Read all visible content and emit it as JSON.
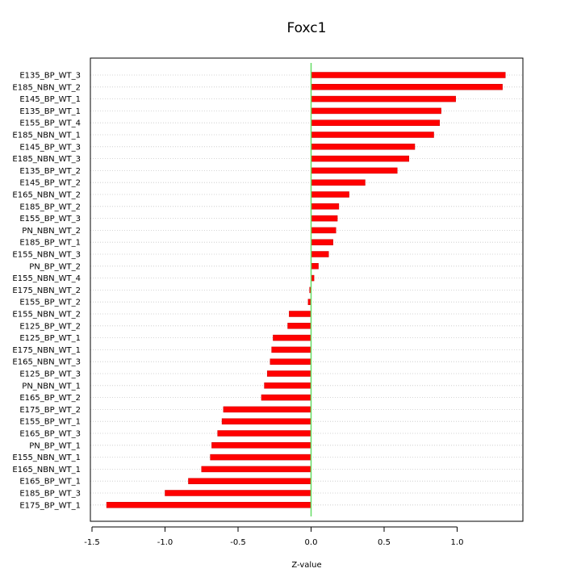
{
  "chart_data": {
    "type": "bar",
    "orientation": "horizontal",
    "title": "Foxc1",
    "xlabel": "Z-value",
    "ylabel": "",
    "xlim": [
      -1.5,
      1.45
    ],
    "xticks": [
      -1.5,
      -1.0,
      -0.5,
      0.0,
      0.5,
      1.0
    ],
    "xtick_labels": [
      "-1.5",
      "-1.0",
      "-0.5",
      "0.0",
      "0.5",
      "1.0"
    ],
    "grid": "horizontal dotted",
    "bar_color": "#ff0000",
    "zero_line_color": "#66dd66",
    "categories": [
      "E135_BP_WT_3",
      "E185_NBN_WT_2",
      "E145_BP_WT_1",
      "E135_BP_WT_1",
      "E155_BP_WT_4",
      "E185_NBN_WT_1",
      "E145_BP_WT_3",
      "E185_NBN_WT_3",
      "E135_BP_WT_2",
      "E145_BP_WT_2",
      "E165_NBN_WT_2",
      "E185_BP_WT_2",
      "E155_BP_WT_3",
      "PN_NBN_WT_2",
      "E185_BP_WT_1",
      "E155_NBN_WT_3",
      "PN_BP_WT_2",
      "E155_NBN_WT_4",
      "E175_NBN_WT_2",
      "E155_BP_WT_2",
      "E155_NBN_WT_2",
      "E125_BP_WT_2",
      "E125_BP_WT_1",
      "E175_NBN_WT_1",
      "E165_NBN_WT_3",
      "E125_BP_WT_3",
      "PN_NBN_WT_1",
      "E165_BP_WT_2",
      "E175_BP_WT_2",
      "E155_BP_WT_1",
      "E165_BP_WT_3",
      "PN_BP_WT_1",
      "E155_NBN_WT_1",
      "E165_NBN_WT_1",
      "E165_BP_WT_1",
      "E185_BP_WT_3",
      "E175_BP_WT_1"
    ],
    "values": [
      1.33,
      1.31,
      0.99,
      0.89,
      0.88,
      0.84,
      0.71,
      0.67,
      0.59,
      0.37,
      0.26,
      0.19,
      0.18,
      0.17,
      0.15,
      0.12,
      0.05,
      0.02,
      -0.01,
      -0.02,
      -0.15,
      -0.16,
      -0.26,
      -0.27,
      -0.28,
      -0.3,
      -0.32,
      -0.34,
      -0.6,
      -0.61,
      -0.64,
      -0.68,
      -0.69,
      -0.75,
      -0.84,
      -1.0,
      -1.4
    ]
  }
}
